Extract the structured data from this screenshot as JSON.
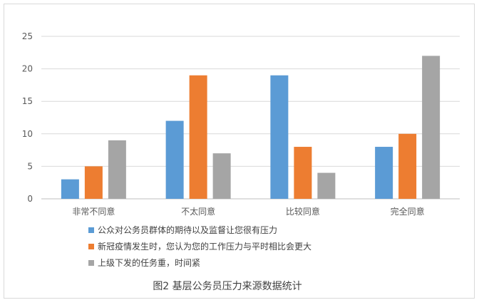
{
  "chart_data": {
    "type": "bar",
    "title": "图2  基层公务员压力来源数据统计",
    "categories": [
      "非常不同意",
      "不太同意",
      "比较同意",
      "完全同意"
    ],
    "series": [
      {
        "name": "公众对公务员群体的期待以及监督让您很有压力",
        "color": "#5b9bd5",
        "values": [
          3,
          12,
          19,
          8
        ]
      },
      {
        "name": "新冠疫情发生时，您认为您的工作压力与平时相比会更大",
        "color": "#ed7d31",
        "values": [
          5,
          19,
          8,
          10
        ]
      },
      {
        "name": "上级下发的任务重，时间紧",
        "color": "#a5a5a5",
        "values": [
          9,
          7,
          4,
          22
        ]
      }
    ],
    "y_ticks": [
      0,
      5,
      10,
      15,
      20,
      25
    ],
    "ylim": [
      0,
      25
    ],
    "grid": true,
    "legend_position": "bottom"
  }
}
